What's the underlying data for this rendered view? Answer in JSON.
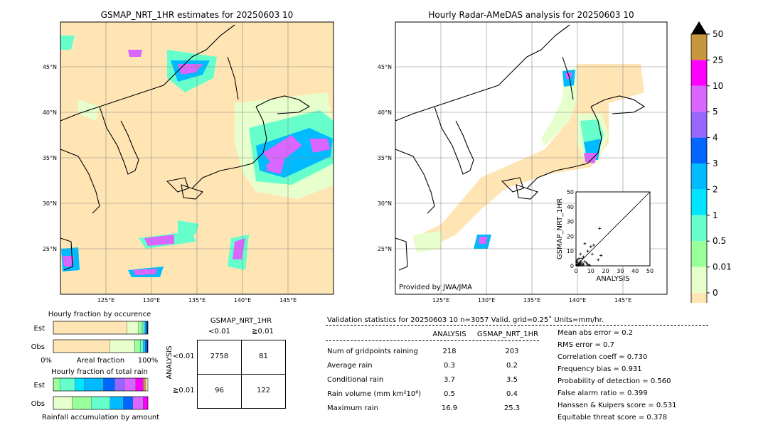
{
  "left_map": {
    "title": "GSMAP_NRT_1HR estimates for 20250603 10",
    "lat_ticks": [
      "45°N",
      "40°N",
      "35°N",
      "30°N",
      "25°N"
    ],
    "lon_ticks": [
      "125°E",
      "130°E",
      "135°E",
      "140°E",
      "145°E"
    ]
  },
  "right_map": {
    "title": "Hourly Radar-AMeDAS analysis for 20250603 10",
    "lat_ticks": [
      "45°N",
      "40°N",
      "35°N",
      "30°N",
      "25°N"
    ],
    "lon_ticks": [
      "125°E",
      "130°E",
      "135°E",
      "140°E",
      "145°E"
    ],
    "provider": "Provided by JWA/JMA"
  },
  "colorbar": {
    "labels": [
      "50",
      "25",
      "10",
      "5",
      "4",
      "3",
      "2",
      "1",
      "0.5",
      "0.01",
      "0"
    ],
    "colors": [
      "#c8963c",
      "#ff00ff",
      "#d966ff",
      "#9966ff",
      "#0066ff",
      "#00bbff",
      "#00e5ff",
      "#66ffcc",
      "#99ff99",
      "#e6ffcc",
      "#ffe5b4"
    ]
  },
  "chart_data": [
    {
      "type": "scatter",
      "xlabel": "ANALYSIS",
      "ylabel": "GSMAP_NRT_1HR",
      "xlim": [
        0,
        50
      ],
      "ylim": [
        0,
        50
      ],
      "x_ticks": [
        "0",
        "10",
        "20",
        "30",
        "40",
        "50"
      ],
      "y_ticks": [
        "0",
        "10",
        "20",
        "30",
        "40",
        "50"
      ],
      "points": [
        [
          0.5,
          0.5
        ],
        [
          1,
          1
        ],
        [
          1.5,
          0.5
        ],
        [
          2,
          2
        ],
        [
          2.5,
          1
        ],
        [
          3,
          3
        ],
        [
          1,
          2
        ],
        [
          0.5,
          3
        ],
        [
          2,
          0.5
        ],
        [
          3,
          1.5
        ],
        [
          4,
          2
        ],
        [
          5,
          1
        ],
        [
          4,
          5
        ],
        [
          6,
          3
        ],
        [
          5,
          6
        ],
        [
          3,
          8
        ],
        [
          7,
          2
        ],
        [
          8,
          1
        ],
        [
          10,
          13
        ],
        [
          12,
          14
        ],
        [
          11,
          8
        ],
        [
          15,
          4
        ],
        [
          16.9,
          7
        ],
        [
          16,
          25.3
        ],
        [
          6,
          15
        ],
        [
          8,
          10
        ],
        [
          2,
          5
        ],
        [
          1,
          4
        ],
        [
          4,
          0.5
        ],
        [
          9,
          0.5
        ]
      ]
    },
    {
      "type": "bar",
      "title": "Hourly fraction by occurence",
      "xlabel": "Areal fraction",
      "x_ticks": [
        "0%",
        "100%"
      ],
      "categories": [
        "Est",
        "Obs"
      ],
      "segments": {
        "Est": [
          {
            "color": "#ffe5b4",
            "value": 0.78
          },
          {
            "color": "#e6ffcc",
            "value": 0.12
          },
          {
            "color": "#99ff99",
            "value": 0.04
          },
          {
            "color": "#66ffcc",
            "value": 0.02
          },
          {
            "color": "#00e5ff",
            "value": 0.015
          },
          {
            "color": "#0066ff",
            "value": 0.015
          },
          {
            "color": "#000080",
            "value": 0.01
          }
        ],
        "Obs": [
          {
            "color": "#ffe5b4",
            "value": 0.6
          },
          {
            "color": "#e6ffcc",
            "value": 0.26
          },
          {
            "color": "#99ff99",
            "value": 0.06
          },
          {
            "color": "#66ffcc",
            "value": 0.03
          },
          {
            "color": "#00e5ff",
            "value": 0.02
          },
          {
            "color": "#0066ff",
            "value": 0.02
          },
          {
            "color": "#000080",
            "value": 0.01
          }
        ]
      }
    },
    {
      "type": "bar",
      "title": "Hourly fraction of total rain",
      "xlabel": "Rainfall accumulation by amount",
      "categories": [
        "Est",
        "Obs"
      ],
      "segments": {
        "Est": [
          {
            "color": "#99ff99",
            "value": 0.07
          },
          {
            "color": "#66ffcc",
            "value": 0.16
          },
          {
            "color": "#00e5ff",
            "value": 0.1
          },
          {
            "color": "#00bbff",
            "value": 0.2
          },
          {
            "color": "#0066ff",
            "value": 0.12
          },
          {
            "color": "#9966ff",
            "value": 0.1
          },
          {
            "color": "#d966ff",
            "value": 0.12
          },
          {
            "color": "#ff00ff",
            "value": 0.08
          },
          {
            "color": "#c8963c",
            "value": 0.03
          }
        ],
        "Obs": [
          {
            "color": "#e6ffcc",
            "value": 0.2
          },
          {
            "color": "#99ff99",
            "value": 0.2
          },
          {
            "color": "#66ffcc",
            "value": 0.2
          },
          {
            "color": "#00bbff",
            "value": 0.14
          },
          {
            "color": "#0066ff",
            "value": 0.1
          },
          {
            "color": "#d966ff",
            "value": 0.11
          },
          {
            "color": "#ff00ff",
            "value": 0.05
          }
        ]
      }
    },
    {
      "type": "table",
      "title": "GSMAP_NRT_1HR",
      "col_labels": [
        "<0.01",
        "≧0.01"
      ],
      "row_axis_label": "ANALYSIS",
      "row_labels": [
        "<0.01",
        "≧0.01"
      ],
      "cells": [
        [
          "2758",
          "81"
        ],
        [
          "96",
          "122"
        ]
      ]
    }
  ],
  "validation": {
    "header": "Validation statistics for 20250603 10  n=3057 Valid. grid=0.25˚ Units=mm/hr.",
    "col_analysis": "ANALYSIS",
    "col_gsmap": "GSMAP_NRT_1HR",
    "rows": [
      {
        "label": "Num of gridpoints raining",
        "a": "218",
        "g": "203"
      },
      {
        "label": "Average rain",
        "a": "0.3",
        "g": "0.2"
      },
      {
        "label": "Conditional rain",
        "a": "3.7",
        "g": "3.5"
      },
      {
        "label": "Rain volume (mm km²10⁶)",
        "a": "0.5",
        "g": "0.4"
      },
      {
        "label": "Maximum rain",
        "a": "16.9",
        "g": "25.3"
      }
    ],
    "scores": [
      "Mean abs error =    0.2",
      "RMS error =    0.7",
      "Correlation coeff =  0.730",
      "Frequency bias =  0.931",
      "Probability of detection =  0.560",
      "False alarm ratio =  0.399",
      "Hanssen & Kuipers score =  0.531",
      "Equitable threat score =  0.378"
    ]
  }
}
